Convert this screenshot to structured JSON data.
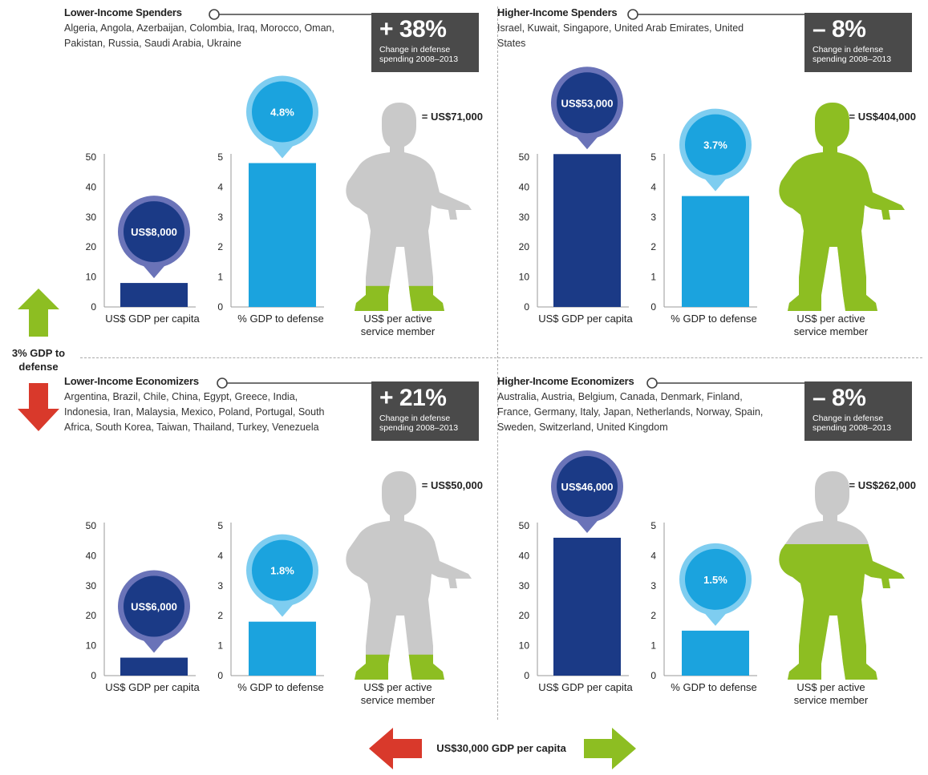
{
  "quadrants": [
    {
      "title": "Lower-Income Spenders",
      "countries": "Algeria, Angola, Azerbaijan, Colombia, Iraq, Morocco, Oman, Pakistan, Russia, Saudi Arabia, Ukraine",
      "change": "+ 38%",
      "change_label": "Change in defense spending 2008–2013",
      "gdp_label": "US$8,000",
      "pct_label": "4.8%",
      "per_member_label": "= US$71,000"
    },
    {
      "title": "Higher-Income Spenders",
      "countries": "Israel, Kuwait, Singapore, United Arab Emirates, United States",
      "change": "– 8%",
      "change_label": "Change in defense spending 2008–2013",
      "gdp_label": "US$53,000",
      "pct_label": "3.7%",
      "per_member_label": "= US$404,000"
    },
    {
      "title": "Lower-Income Economizers",
      "countries": "Argentina, Brazil, Chile, China, Egypt, Greece, India, Indonesia, Iran, Malaysia, Mexico, Poland, Portugal, South Africa, South Korea, Taiwan, Thailand, Turkey, Venezuela",
      "change": "+ 21%",
      "change_label": "Change in defense spending 2008–2013",
      "gdp_label": "US$6,000",
      "pct_label": "1.8%",
      "per_member_label": "= US$50,000"
    },
    {
      "title": "Higher-Income Economizers",
      "countries": "Australia, Austria, Belgium, Canada, Denmark, Finland, France, Germany, Italy, Japan, Netherlands, Norway, Spain, Sweden, Switzerland, United Kingdom",
      "change": "– 8%",
      "change_label": "Change in defense spending 2008–2013",
      "gdp_label": "US$46,000",
      "pct_label": "1.5%",
      "per_member_label": "= US$262,000"
    }
  ],
  "captions": {
    "gdp": "US$ GDP per capita",
    "pct": "% GDP to defense",
    "member": "US$ per active service member"
  },
  "legend": {
    "vertical": "3% GDP to defense",
    "horizontal": "US$30,000 GDP per capita"
  },
  "colors": {
    "dark_blue": "#1b3a86",
    "bright_blue": "#1ba3de",
    "bubble_dark_ring": "#6a73b8",
    "bubble_light_ring": "#7ecdf0",
    "green": "#8dbe22",
    "gray": "#c9c9c9",
    "red": "#d9392b",
    "badge": "#4a4a4a"
  },
  "chart_data": [
    {
      "type": "bar",
      "title": "Lower-Income Spenders",
      "charts": [
        {
          "category": "US$ GDP per capita",
          "unit": "thousand US$",
          "ylim": [
            0,
            50
          ],
          "ticks": [
            0,
            10,
            20,
            30,
            40,
            50
          ],
          "value": 8
        },
        {
          "category": "% GDP to defense",
          "unit": "%",
          "ylim": [
            0,
            5
          ],
          "ticks": [
            0,
            1,
            2,
            3,
            4,
            5
          ],
          "value": 4.8
        },
        {
          "category": "US$ per active service member",
          "value": 71000,
          "fill_fraction": 0.12
        }
      ],
      "change_pct": 38
    },
    {
      "type": "bar",
      "title": "Higher-Income Spenders",
      "charts": [
        {
          "category": "US$ GDP per capita",
          "unit": "thousand US$",
          "ylim": [
            0,
            50
          ],
          "ticks": [
            0,
            10,
            20,
            30,
            40,
            50
          ],
          "value": 53
        },
        {
          "category": "% GDP to defense",
          "unit": "%",
          "ylim": [
            0,
            5
          ],
          "ticks": [
            0,
            1,
            2,
            3,
            4,
            5
          ],
          "value": 3.7
        },
        {
          "category": "US$ per active service member",
          "value": 404000,
          "fill_fraction": 1.0
        }
      ],
      "change_pct": -8
    },
    {
      "type": "bar",
      "title": "Lower-Income Economizers",
      "charts": [
        {
          "category": "US$ GDP per capita",
          "unit": "thousand US$",
          "ylim": [
            0,
            50
          ],
          "ticks": [
            0,
            10,
            20,
            30,
            40,
            50
          ],
          "value": 6
        },
        {
          "category": "% GDP to defense",
          "unit": "%",
          "ylim": [
            0,
            5
          ],
          "ticks": [
            0,
            1,
            2,
            3,
            4,
            5
          ],
          "value": 1.8
        },
        {
          "category": "US$ per active service member",
          "value": 50000,
          "fill_fraction": 0.12
        }
      ],
      "change_pct": 21
    },
    {
      "type": "bar",
      "title": "Higher-Income Economizers",
      "charts": [
        {
          "category": "US$ GDP per capita",
          "unit": "thousand US$",
          "ylim": [
            0,
            50
          ],
          "ticks": [
            0,
            10,
            20,
            30,
            40,
            50
          ],
          "value": 46
        },
        {
          "category": "% GDP to defense",
          "unit": "%",
          "ylim": [
            0,
            5
          ],
          "ticks": [
            0,
            1,
            2,
            3,
            4,
            5
          ],
          "value": 1.5
        },
        {
          "category": "US$ per active service member",
          "value": 262000,
          "fill_fraction": 0.65
        }
      ],
      "change_pct": -8
    }
  ]
}
